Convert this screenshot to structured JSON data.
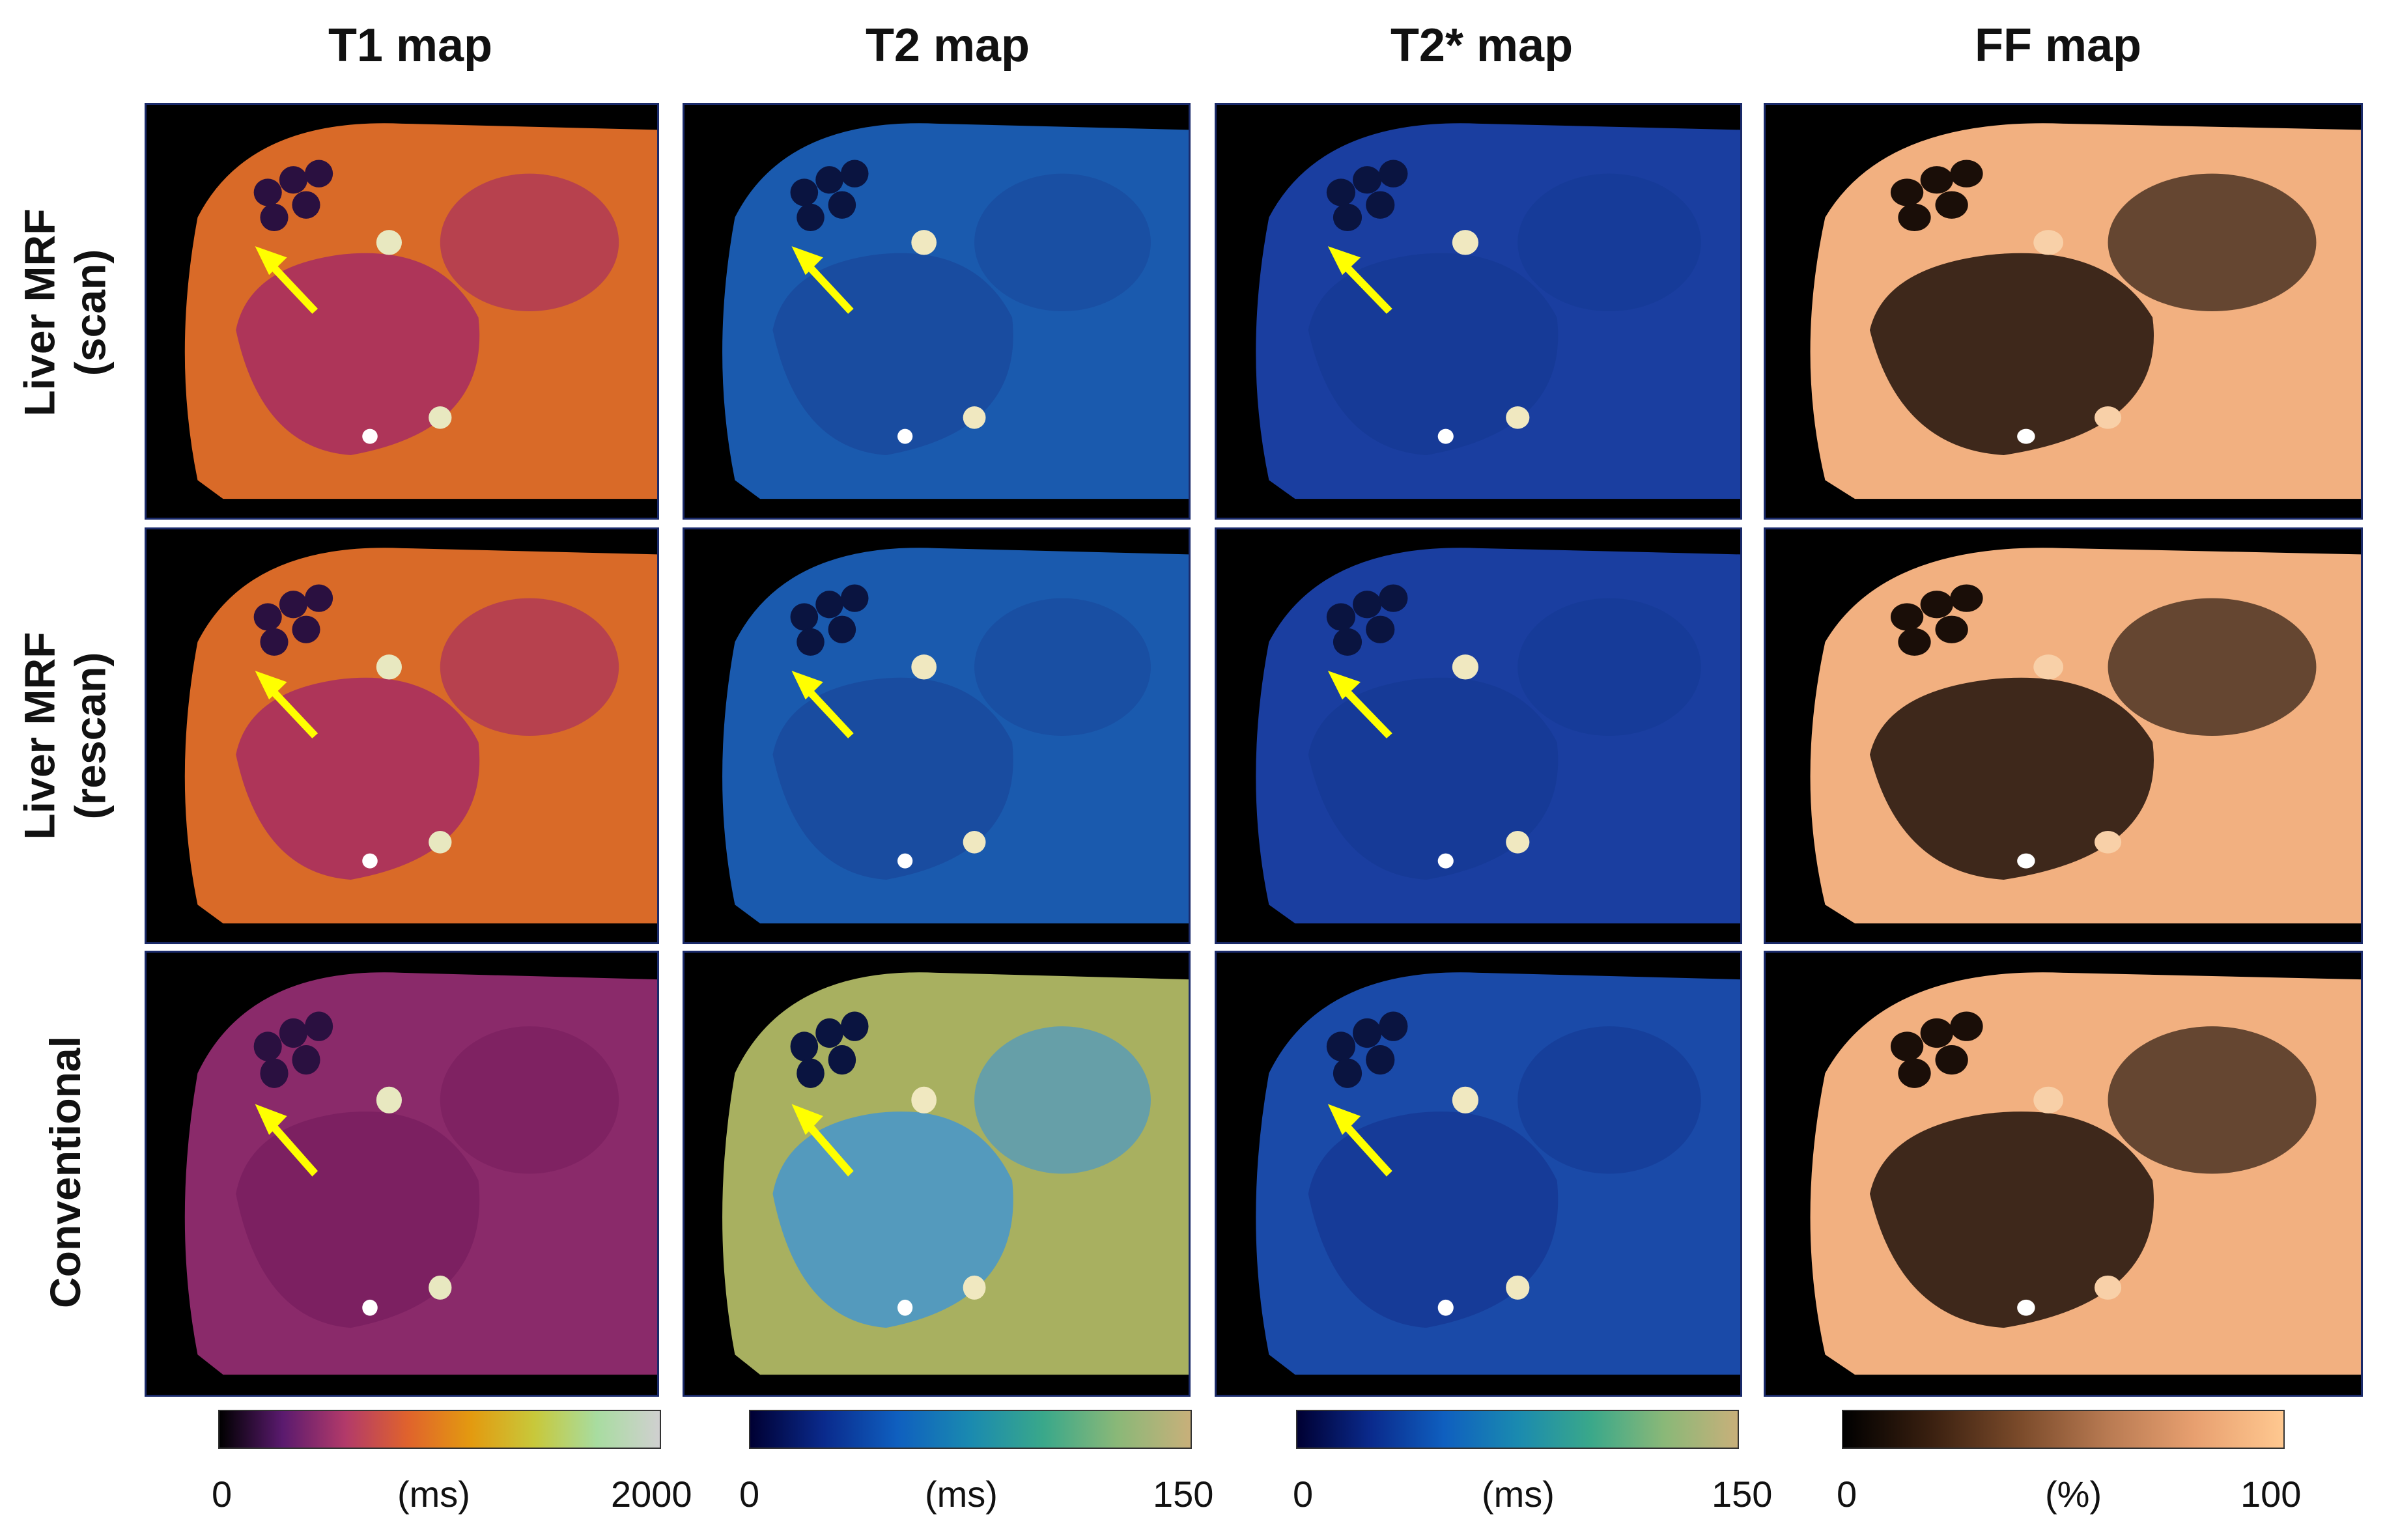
{
  "columns": [
    {
      "title": "T1 map"
    },
    {
      "title": "T2 map"
    },
    {
      "title": "T2* map"
    },
    {
      "title": "FF map"
    }
  ],
  "rows": [
    {
      "line1": "Liver MRF",
      "line2": "(scan)"
    },
    {
      "line1": "Liver MRF",
      "line2": "(rescan)"
    },
    {
      "line1": "Conventional",
      "line2": ""
    }
  ],
  "colorbars": [
    {
      "min": "0",
      "unit": "(ms)",
      "max": "2000",
      "colormap": [
        "#000000",
        "#5a1a6e",
        "#b23a6a",
        "#e0632c",
        "#e39a10",
        "#c8c83a",
        "#a8dca0",
        "#d0d0d0"
      ]
    },
    {
      "min": "0",
      "unit": "(ms)",
      "max": "150",
      "colormap": [
        "#000033",
        "#0a2a8c",
        "#0f5fbf",
        "#1a8ab0",
        "#3aa88a",
        "#8ab878",
        "#c8b07a"
      ]
    },
    {
      "min": "0",
      "unit": "(ms)",
      "max": "150",
      "colormap": [
        "#000033",
        "#0a2a8c",
        "#0f5fbf",
        "#1a8ab0",
        "#3aa88a",
        "#8ab878",
        "#c8b07a"
      ]
    },
    {
      "min": "0",
      "unit": "(%)",
      "max": "100",
      "colormap": [
        "#000000",
        "#3a2010",
        "#7a4a2a",
        "#b87a52",
        "#e8a070",
        "#ffc890"
      ]
    }
  ],
  "panel_styles": [
    [
      "#d96a28",
      "#1a5aae",
      "#1a3ea0",
      "#e9a67a"
    ],
    [
      "#d96a28",
      "#1a5aae",
      "#1a3ea0",
      "#e9a67a"
    ],
    [
      "#8a2a6a",
      "#a8b060",
      "#1a4aa8",
      "#e9a67a"
    ]
  ],
  "arrow_color": "#ffff00"
}
